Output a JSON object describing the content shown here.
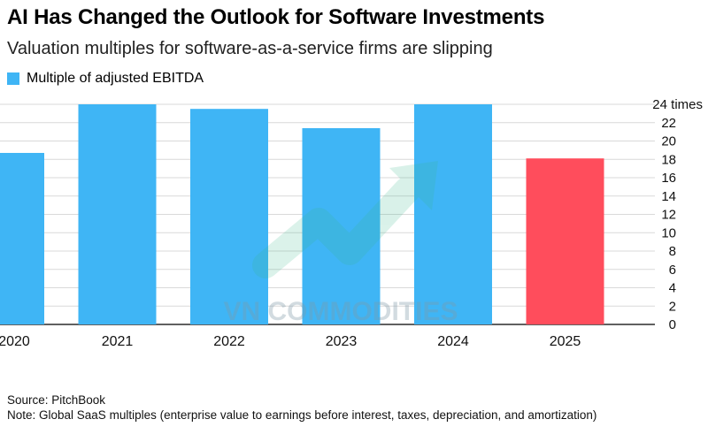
{
  "title": "AI Has Changed the Outlook for Software Investments",
  "subtitle": "Valuation multiples for software-as-a-service firms are slipping",
  "legend": {
    "label": "Multiple of adjusted EBITDA",
    "color": "#3FB5F5"
  },
  "source": "Source: PitchBook",
  "note": "Note: Global SaaS multiples (enterprise value to earnings before interest, taxes, depreciation, and amortization)",
  "watermark": "VN COMMODITIES",
  "chart_data": {
    "type": "bar",
    "categories": [
      "2020",
      "2021",
      "2022",
      "2023",
      "2024",
      "2025"
    ],
    "values": [
      18.7,
      24.0,
      23.5,
      21.4,
      24.0,
      18.1
    ],
    "colors": [
      "#3FB5F5",
      "#3FB5F5",
      "#3FB5F5",
      "#3FB5F5",
      "#3FB5F5",
      "#FF4D5C"
    ],
    "ylim": [
      0,
      24
    ],
    "yticks": [
      0,
      2,
      4,
      6,
      8,
      10,
      12,
      14,
      16,
      18,
      20,
      22,
      24
    ],
    "top_tick_label": "24 times",
    "y_axis_side": "right",
    "grid": true,
    "xlabel": "",
    "ylabel": ""
  }
}
